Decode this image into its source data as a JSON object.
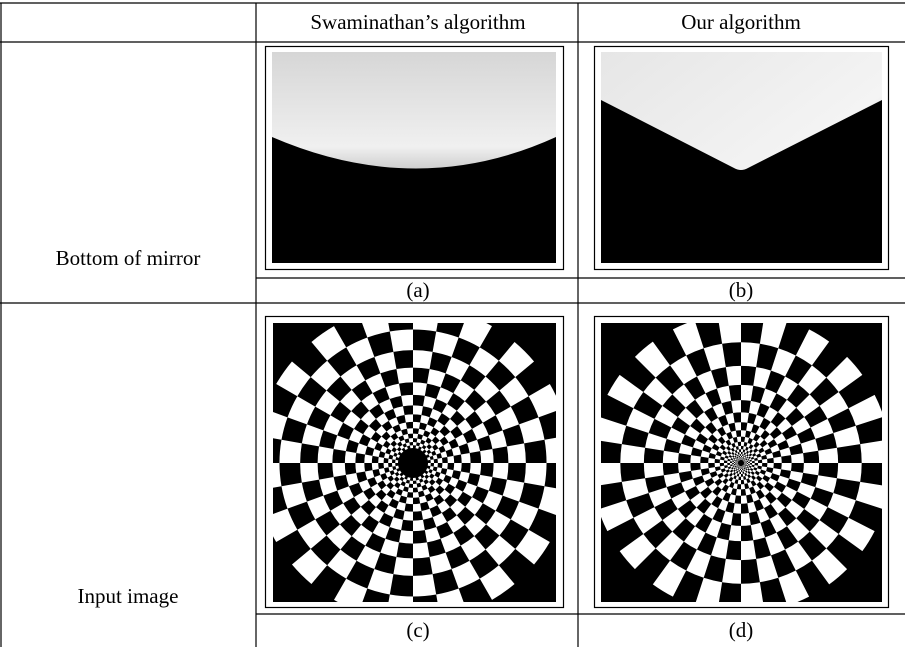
{
  "table": {
    "columns": [
      "Swaminathan’s algorithm",
      "Our algorithm"
    ],
    "rows": [
      {
        "label": "Bottom of mirror",
        "captions": [
          "(a)",
          "(b)"
        ]
      },
      {
        "label": "Input image",
        "captions": [
          "(c)",
          "(d)"
        ]
      }
    ]
  }
}
